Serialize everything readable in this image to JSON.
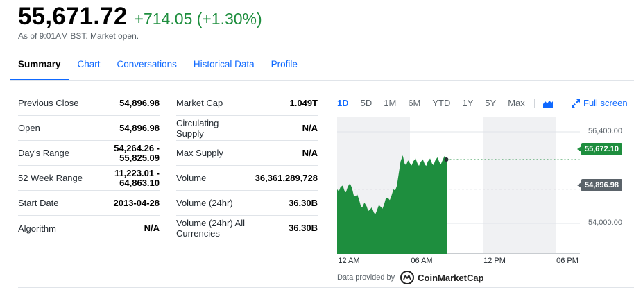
{
  "quote": {
    "price": "55,671.72",
    "change": "+714.05 (+1.30%)",
    "as_of": "As of 9:01AM BST. Market open."
  },
  "tabs": [
    {
      "label": "Summary",
      "active": true
    },
    {
      "label": "Chart"
    },
    {
      "label": "Conversations"
    },
    {
      "label": "Historical Data"
    },
    {
      "label": "Profile"
    }
  ],
  "stats_left": [
    {
      "label": "Previous Close",
      "value": "54,896.98"
    },
    {
      "label": "Open",
      "value": "54,896.98"
    },
    {
      "label": "Day's Range",
      "value": "54,264.26 - 55,825.09"
    },
    {
      "label": "52 Week Range",
      "value": "11,223.01 - 64,863.10"
    },
    {
      "label": "Start Date",
      "value": "2013-04-28"
    },
    {
      "label": "Algorithm",
      "value": "N/A"
    }
  ],
  "stats_right": [
    {
      "label": "Market Cap",
      "value": "1.049T"
    },
    {
      "label": "Circulating Supply",
      "value": "N/A"
    },
    {
      "label": "Max Supply",
      "value": "N/A"
    },
    {
      "label": "Volume",
      "value": "36,361,289,728"
    },
    {
      "label": "Volume (24hr)",
      "value": "36.30B"
    },
    {
      "label": "Volume (24hr) All Currencies",
      "value": "36.30B"
    }
  ],
  "chart_controls": {
    "ranges": [
      "1D",
      "5D",
      "1M",
      "6M",
      "YTD",
      "1Y",
      "5Y",
      "Max"
    ],
    "active_range": "1D",
    "chart_type_icon": "mountain-chart-icon",
    "fullscreen_label": "Full screen",
    "fullscreen_icon": "expand-icon"
  },
  "chart_data": {
    "type": "area",
    "x_tick_labels": [
      "12 AM",
      "06 AM",
      "12 PM",
      "06 PM"
    ],
    "y_tick_labels": [
      "56,400.00",
      "54,000.00"
    ],
    "y_ticks": [
      56400,
      54000
    ],
    "ylim": [
      53200,
      56800
    ],
    "x_range_hours": [
      0,
      20
    ],
    "current_price_label": "55,672.10",
    "current_price": 55672.1,
    "previous_close_label": "54,896.98",
    "previous_close": 54896.98,
    "series": [
      {
        "x": [
          0,
          0.3,
          0.6,
          0.9,
          1.2,
          1.5,
          1.8,
          2.1,
          2.4,
          2.7,
          3.0,
          3.3,
          3.6,
          3.9,
          4.2,
          4.5,
          4.8,
          5.1,
          5.4,
          5.7,
          6.0,
          6.3,
          6.6,
          6.9,
          7.2,
          7.5,
          7.8,
          8.1,
          8.4,
          8.7,
          9.0
        ],
        "y": [
          54880,
          54950,
          54830,
          54960,
          54920,
          54700,
          54600,
          54420,
          54450,
          54350,
          54280,
          54330,
          54420,
          54500,
          54650,
          54720,
          54850,
          55300,
          55750,
          55520,
          55560,
          55620,
          55560,
          55600,
          55540,
          55620,
          55560,
          55640,
          55600,
          55640,
          55672
        ]
      }
    ],
    "line_color": "#1e8e3e",
    "prev_close_color": "#5b636a",
    "shaded_regions": [
      "12 AM - 06 AM",
      "12 PM - 06 PM"
    ]
  },
  "attribution": {
    "text": "Data provided by",
    "provider": "CoinMarketCap"
  }
}
